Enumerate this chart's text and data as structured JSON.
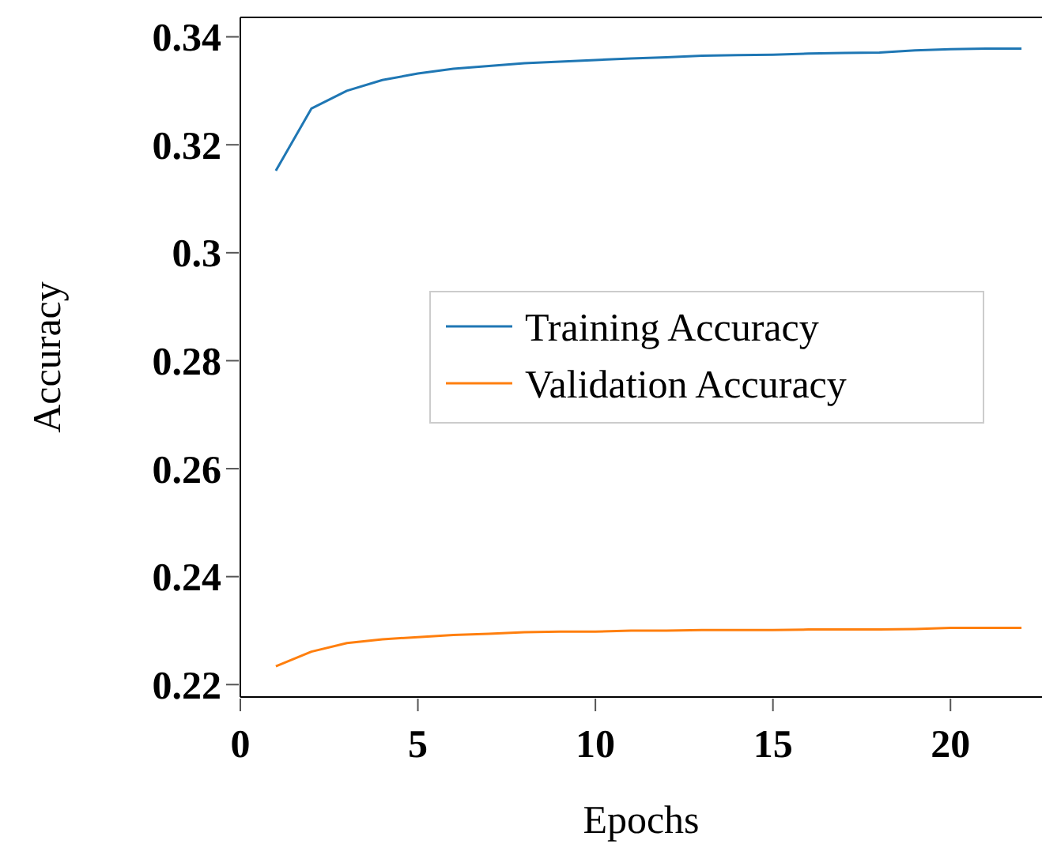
{
  "chart_data": {
    "type": "line",
    "xlabel": "Epochs",
    "ylabel": "Accuracy",
    "x": [
      1,
      2,
      3,
      4,
      5,
      6,
      7,
      8,
      9,
      10,
      11,
      12,
      13,
      14,
      15,
      16,
      17,
      18,
      19,
      20,
      21,
      22
    ],
    "xlim": [
      0,
      22.6
    ],
    "xticks": [
      0,
      5,
      10,
      15,
      20
    ],
    "ylim": [
      0.2177,
      0.3436
    ],
    "yticks": [
      0.22,
      0.24,
      0.26,
      0.28,
      {
        "value": 0.3,
        "label": "0.3"
      },
      0.32,
      0.34
    ],
    "series": [
      {
        "name": "Training Accuracy",
        "color": "#1f77b4",
        "values": [
          0.3152,
          0.3267,
          0.33,
          0.332,
          0.3332,
          0.3341,
          0.3346,
          0.3351,
          0.3354,
          0.3357,
          0.336,
          0.3362,
          0.3365,
          0.3366,
          0.3367,
          0.3369,
          0.337,
          0.3371,
          0.3375,
          0.3377,
          0.3378,
          0.3378
        ]
      },
      {
        "name": "Validation Accuracy",
        "color": "#ff7f0e",
        "values": [
          0.2234,
          0.2261,
          0.2277,
          0.2284,
          0.2288,
          0.2292,
          0.2294,
          0.2297,
          0.2298,
          0.2298,
          0.23,
          0.23,
          0.2301,
          0.2301,
          0.2301,
          0.2302,
          0.2302,
          0.2302,
          0.2303,
          0.2305,
          0.2305,
          0.2305
        ]
      }
    ],
    "legend": "right",
    "grid": false
  }
}
